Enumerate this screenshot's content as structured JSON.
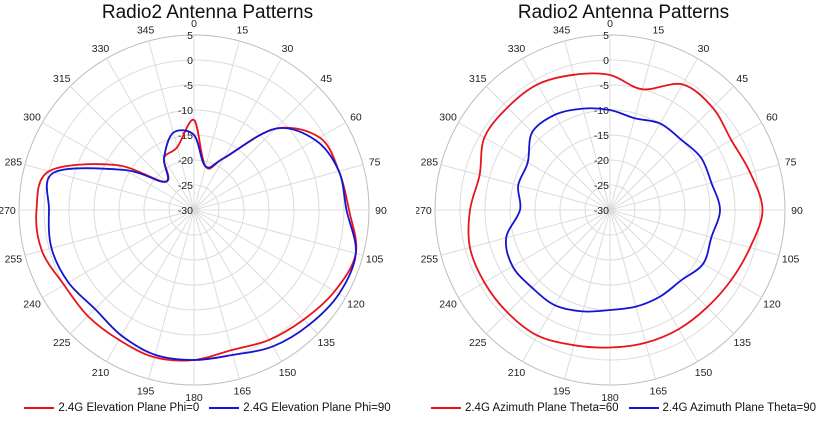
{
  "chart_data": [
    {
      "type": "polar-line",
      "title": "Radio2 Antenna Patterns",
      "angle_unit": "degrees",
      "angle_ticks": [
        0,
        15,
        30,
        45,
        60,
        75,
        90,
        105,
        120,
        135,
        150,
        165,
        180,
        195,
        210,
        225,
        240,
        255,
        270,
        285,
        300,
        315,
        330,
        345
      ],
      "radial_ticks": [
        -30,
        -25,
        -20,
        -15,
        -10,
        -5,
        0,
        5
      ],
      "rlim": [
        -30,
        5
      ],
      "grid": true,
      "legend_position": "bottom",
      "series": [
        {
          "name": "2.4G Elevation Plane Phi=0",
          "color": "#e8141c",
          "theta": [
            0,
            15,
            30,
            45,
            60,
            75,
            90,
            105,
            120,
            135,
            150,
            165,
            180,
            195,
            210,
            225,
            240,
            255,
            270,
            285,
            300,
            315,
            330,
            345
          ],
          "r": [
            -12,
            -21,
            -18,
            -7,
            -1,
            0,
            1,
            3.5,
            2.5,
            1,
            0,
            -1,
            0,
            0.5,
            0,
            0,
            0,
            1.5,
            1.5,
            0,
            -12,
            -22,
            -18,
            -17
          ]
        },
        {
          "name": "2.4G Elevation Plane Phi=90",
          "color": "#1414d2",
          "theta": [
            0,
            15,
            30,
            45,
            60,
            75,
            90,
            105,
            120,
            135,
            150,
            165,
            180,
            195,
            210,
            225,
            240,
            255,
            270,
            285,
            300,
            315,
            330,
            345
          ],
          "r": [
            -15,
            -21,
            -18,
            -7,
            -2,
            0,
            0.5,
            3.5,
            3.5,
            2.5,
            1.5,
            0,
            0,
            0,
            -1,
            -2,
            -1,
            -0.5,
            -1,
            -1,
            -14,
            -22,
            -18,
            -14
          ]
        }
      ]
    },
    {
      "type": "polar-line",
      "title": "Radio2 Antenna Patterns",
      "angle_unit": "degrees",
      "angle_ticks": [
        0,
        15,
        30,
        45,
        60,
        75,
        90,
        105,
        120,
        135,
        150,
        165,
        180,
        195,
        210,
        225,
        240,
        255,
        270,
        285,
        300,
        315,
        330,
        345
      ],
      "radial_ticks": [
        -30,
        -25,
        -20,
        -15,
        -10,
        -5,
        0,
        5
      ],
      "rlim": [
        -30,
        5
      ],
      "grid": true,
      "legend_position": "bottom",
      "series": [
        {
          "name": "2.4G Azimuth Plane Theta=60",
          "color": "#e8141c",
          "theta": [
            0,
            15,
            30,
            45,
            60,
            75,
            90,
            105,
            120,
            135,
            150,
            165,
            180,
            195,
            210,
            225,
            240,
            255,
            270,
            285,
            300,
            315,
            330,
            345
          ],
          "r": [
            -3,
            -5,
            -1,
            -1,
            -2,
            -1,
            0.5,
            -1,
            -2,
            -2.5,
            -2.5,
            -2.5,
            -2.5,
            -2,
            -1,
            -1,
            -1,
            -1,
            -2,
            -3,
            -1,
            -1,
            -1,
            -2
          ]
        },
        {
          "name": "2.4G Azimuth Plane Theta=90",
          "color": "#1414d2",
          "theta": [
            0,
            15,
            30,
            45,
            60,
            75,
            90,
            105,
            120,
            135,
            150,
            165,
            180,
            195,
            210,
            225,
            240,
            255,
            270,
            285,
            300,
            315,
            330,
            345
          ],
          "r": [
            -10,
            -11,
            -10,
            -10,
            -9,
            -9,
            -8,
            -9,
            -8.5,
            -10,
            -10,
            -10,
            -10,
            -9,
            -8,
            -8,
            -7.5,
            -8.5,
            -12,
            -11,
            -11,
            -8,
            -8,
            -9
          ]
        }
      ]
    }
  ]
}
